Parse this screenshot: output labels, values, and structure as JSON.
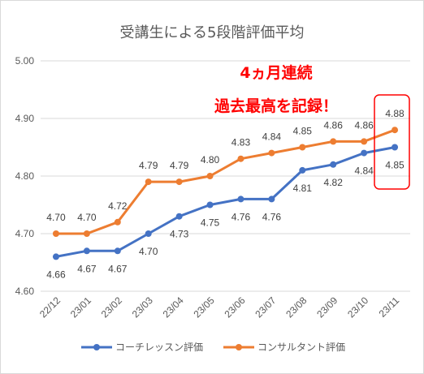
{
  "chart_data": {
    "type": "line",
    "title": "受講生による5段階評価平均",
    "categories": [
      "22/12",
      "23/01",
      "23/02",
      "23/03",
      "23/04",
      "23/05",
      "23/06",
      "23/07",
      "23/08",
      "23/09",
      "23/10",
      "23/11"
    ],
    "ylim": [
      4.6,
      5.0
    ],
    "yticks": [
      "4.60",
      "4.70",
      "4.80",
      "4.90",
      "5.00"
    ],
    "grid": true,
    "legend_position": "bottom",
    "series": [
      {
        "name": "コーチレッスン評価",
        "color": "#4472c4",
        "values": [
          4.66,
          4.67,
          4.67,
          4.7,
          4.73,
          4.75,
          4.76,
          4.76,
          4.81,
          4.82,
          4.84,
          4.85
        ],
        "labels": [
          "4.66",
          "4.67",
          "4.67",
          "4.70",
          "4.73",
          "4.75",
          "4.76",
          "4.76",
          "4.81",
          "4.82",
          "4.84",
          "4.85"
        ]
      },
      {
        "name": "コンサルタント評価",
        "color": "#ed7d31",
        "values": [
          4.7,
          4.7,
          4.72,
          4.79,
          4.79,
          4.8,
          4.83,
          4.84,
          4.85,
          4.86,
          4.86,
          4.88
        ],
        "labels": [
          "4.70",
          "4.70",
          "4.72",
          "4.79",
          "4.79",
          "4.80",
          "4.83",
          "4.84",
          "4.85",
          "4.86",
          "4.86",
          "4.88"
        ]
      }
    ],
    "annotations": [
      "4ヵ月連続",
      "過去最高を記録！"
    ],
    "highlight_color": "#ff0000"
  }
}
